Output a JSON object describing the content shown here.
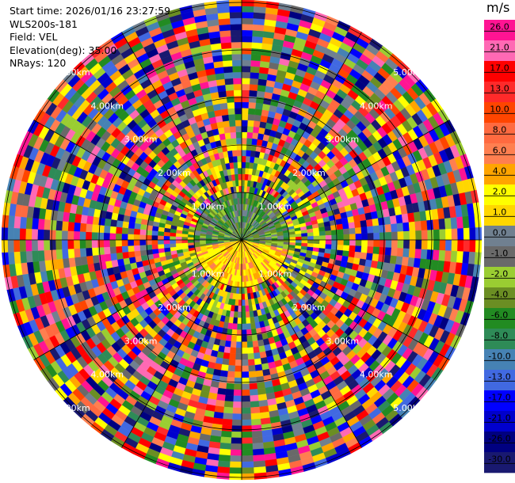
{
  "info": {
    "start_time": "Start time: 2026/01/16 23:27:59",
    "instrument": "WLS200s-181",
    "field": "Field: VEL",
    "elevation": "Elevation(deg): 35.00",
    "nrays": "NRays: 120"
  },
  "colorbar": {
    "unit": "m/s",
    "ticks": [
      "26.0",
      "21.0",
      "17.0",
      "13.0",
      "10.0",
      "8.0",
      "6.0",
      "4.0",
      "2.0",
      "1.0",
      "0.0",
      "-1.0",
      "-2.0",
      "-4.0",
      "-6.0",
      "-8.0",
      "-10.0",
      "-13.0",
      "-17.0",
      "-21.0",
      "-26.0",
      "-30.0"
    ],
    "colors": [
      "#ff1493",
      "#ff69b4",
      "#ff0000",
      "#ff2a2a",
      "#ff4500",
      "#ff6a40",
      "#ff7f50",
      "#ffa500",
      "#ffff00",
      "#ffd700",
      "#708090",
      "#696969",
      "#9acd32",
      "#6b8e23",
      "#228b22",
      "#2e8b57",
      "#4682b4",
      "#4169e1",
      "#0000ff",
      "#0000cd",
      "#000080",
      "#191970"
    ]
  },
  "chart_data": {
    "type": "heatmap",
    "projection": "polar PPI",
    "field": "VEL",
    "elevation_deg": 35.0,
    "n_rays": 120,
    "unit": "m/s",
    "range_rings_labels": [
      "1.00km",
      "2.00km",
      "3.00km",
      "4.00km",
      "5.00km"
    ],
    "vmin": -30.0,
    "vmax": 26.0
  }
}
